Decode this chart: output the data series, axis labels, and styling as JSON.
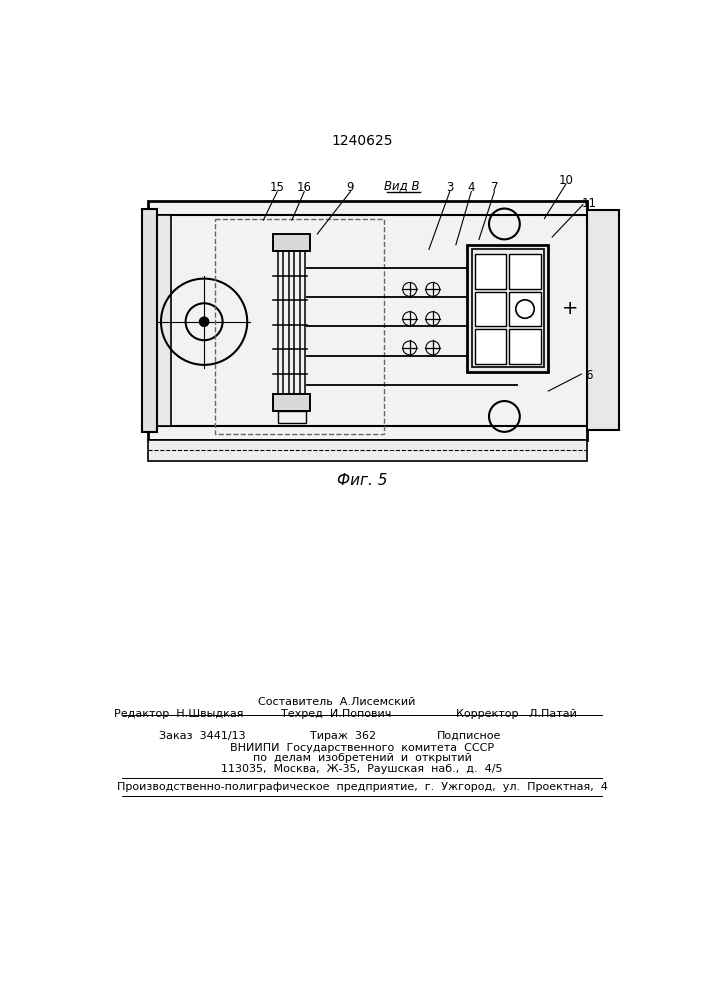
{
  "patent_number": "1240625",
  "fig_label": "Фиг. 5",
  "view_label": "Вид В",
  "bg_color": "#ffffff",
  "lc": "black",
  "lfs": 8.5,
  "footer": {
    "line1a": "Составитель  А.Лисемский",
    "line1b": "Техред  И.Попович",
    "editor": "Редактор  Н.Швыдкая",
    "corrector": "Корректор   Л.Патай",
    "zakaz": "Заказ  3441/13",
    "tirazh": "Тираж  362",
    "podpisnoe": "Подписное",
    "vniip": "ВНИИПИ  Государственного  комитета  СССР",
    "po_delam": "по  делам  изобретений  и  открытий",
    "address": "113035,  Москва,  Ж-35,  Раушская  наб.,  д.  4/5",
    "factory": "Производственно-полиграфическое  предприятие,  г.  Ужгород,  ул.  Проектная,  4"
  }
}
